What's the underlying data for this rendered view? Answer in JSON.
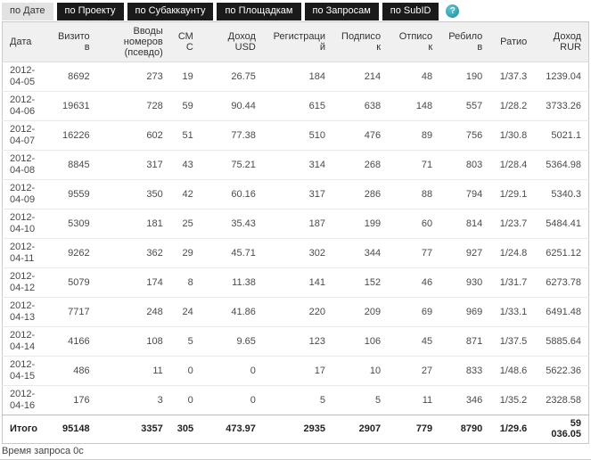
{
  "tabs": [
    {
      "label": "по Дате",
      "active": true
    },
    {
      "label": "по Проекту",
      "active": false
    },
    {
      "label": "по Субаккаунту",
      "active": false
    },
    {
      "label": "по Площадкам",
      "active": false
    },
    {
      "label": "по Запросам",
      "active": false
    },
    {
      "label": "по SubID",
      "active": false
    }
  ],
  "help_icon_glyph": "?",
  "table": {
    "columns": [
      "Дата",
      "Визитов",
      "Вводы номеров (псевдо)",
      "СМС",
      "Доход USD",
      "Регистраций",
      "Подписок",
      "Отписок",
      "Ребилов",
      "Ратио",
      "Доход RUR"
    ],
    "rows": [
      [
        "2012-04-05",
        "8692",
        "273",
        "19",
        "26.75",
        "184",
        "214",
        "48",
        "190",
        "1/37.3",
        "1239.04"
      ],
      [
        "2012-04-06",
        "19631",
        "728",
        "59",
        "90.44",
        "615",
        "638",
        "148",
        "557",
        "1/28.2",
        "3733.26"
      ],
      [
        "2012-04-07",
        "16226",
        "602",
        "51",
        "77.38",
        "510",
        "476",
        "89",
        "756",
        "1/30.8",
        "5021.1"
      ],
      [
        "2012-04-08",
        "8845",
        "317",
        "43",
        "75.21",
        "314",
        "268",
        "71",
        "803",
        "1/28.4",
        "5364.98"
      ],
      [
        "2012-04-09",
        "9559",
        "350",
        "42",
        "60.16",
        "317",
        "286",
        "88",
        "794",
        "1/29.1",
        "5340.3"
      ],
      [
        "2012-04-10",
        "5309",
        "181",
        "25",
        "35.43",
        "187",
        "199",
        "60",
        "814",
        "1/23.7",
        "5484.41"
      ],
      [
        "2012-04-11",
        "9262",
        "362",
        "29",
        "45.71",
        "302",
        "344",
        "77",
        "927",
        "1/24.8",
        "6251.12"
      ],
      [
        "2012-04-12",
        "5079",
        "174",
        "8",
        "11.38",
        "141",
        "152",
        "46",
        "930",
        "1/31.7",
        "6273.78"
      ],
      [
        "2012-04-13",
        "7717",
        "248",
        "24",
        "41.86",
        "220",
        "209",
        "69",
        "969",
        "1/33.1",
        "6491.48"
      ],
      [
        "2012-04-14",
        "4166",
        "108",
        "5",
        "9.65",
        "123",
        "106",
        "45",
        "871",
        "1/37.5",
        "5885.64"
      ],
      [
        "2012-04-15",
        "486",
        "11",
        "0",
        "0",
        "17",
        "10",
        "27",
        "833",
        "1/48.6",
        "5622.36"
      ],
      [
        "2012-04-16",
        "176",
        "3",
        "0",
        "0",
        "5",
        "5",
        "11",
        "346",
        "1/35.2",
        "2328.58"
      ]
    ],
    "totals": [
      "Итого",
      "95148",
      "3357",
      "305",
      "473.97",
      "2935",
      "2907",
      "779",
      "8790",
      "1/29.6",
      "59 036.05"
    ]
  },
  "status_text": "Время запроса 0с",
  "colors": {
    "tab_inactive_bg": "#1a1a1a",
    "tab_inactive_text": "#ffffff",
    "tab_active_bg": "#e2e2e2",
    "tab_active_text": "#333333",
    "header_bg": "#f0f0f0",
    "table_border": "#c9c9c9",
    "help_icon": "#2f9fab"
  }
}
